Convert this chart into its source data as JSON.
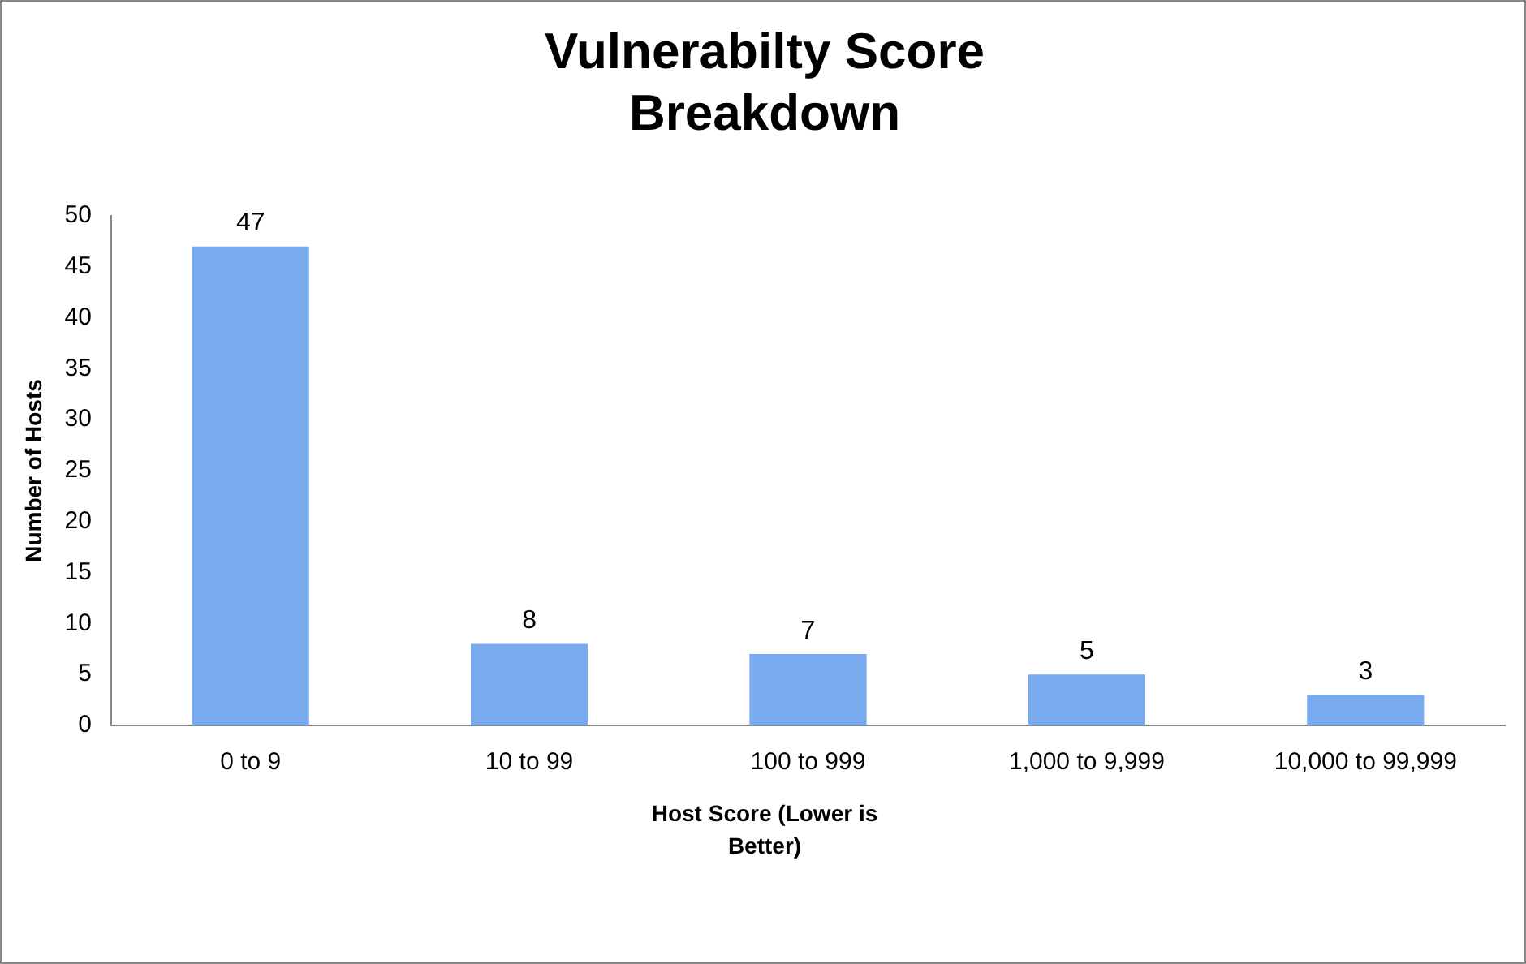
{
  "chart_data": {
    "type": "bar",
    "title": "Vulnerabilty Score Breakdown",
    "xlabel": "Host Score (Lower is Better)",
    "ylabel": "Number of Hosts",
    "categories": [
      "0 to 9",
      "10 to 99",
      "100 to 999",
      "1,000 to 9,999",
      "10,000 to 99,999"
    ],
    "values": [
      47,
      8,
      7,
      5,
      3
    ],
    "color": "#7aaaee",
    "ylim": [
      0,
      50
    ],
    "yticks": [
      0,
      5,
      10,
      15,
      20,
      25,
      30,
      35,
      40,
      45,
      50
    ],
    "grid": false,
    "legend": false,
    "data_labels": true
  }
}
